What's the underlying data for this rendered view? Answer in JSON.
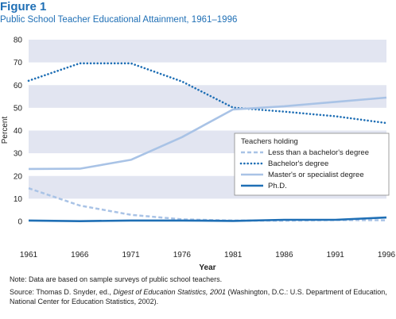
{
  "figure": {
    "label": "Figure 1",
    "subtitle": "Public School Teacher Educational Attainment, 1961–1996"
  },
  "chart_data": {
    "type": "line",
    "title": "Public School Teacher Educational Attainment, 1961–1996",
    "xlabel": "Year",
    "ylabel": "Percent",
    "x": [
      1961,
      1966,
      1971,
      1976,
      1981,
      1986,
      1991,
      1996
    ],
    "xticks": [
      "1961",
      "1966",
      "1971",
      "1976",
      "1981",
      "1986",
      "1991",
      "1996"
    ],
    "yticks": [
      "0",
      "10",
      "20",
      "30",
      "40",
      "50",
      "60",
      "70",
      "80"
    ],
    "ylim": [
      0,
      80
    ],
    "grid": "alternating horizontal bands",
    "legend_title": "Teachers holding",
    "legend_position": "right, middle",
    "series": [
      {
        "name": "Less than a bachelor's degree",
        "style": "dashed",
        "color": "#a9c3e6",
        "values": [
          14.6,
          7.0,
          2.9,
          0.9,
          0.4,
          0.3,
          0.6,
          0.5
        ]
      },
      {
        "name": "Bachelor's degree",
        "style": "dotted",
        "color": "#1f6fb5",
        "values": [
          61.9,
          69.6,
          69.6,
          61.6,
          50.1,
          48.3,
          46.3,
          43.3
        ]
      },
      {
        "name": "Master's or specialist degree",
        "style": "solid",
        "color": "#a9c3e6",
        "values": [
          23.1,
          23.2,
          27.1,
          37.1,
          49.3,
          50.7,
          52.6,
          54.5
        ]
      },
      {
        "name": "Ph.D.",
        "style": "solid",
        "color": "#1f6fb5",
        "values": [
          0.4,
          0.1,
          0.4,
          0.4,
          0.2,
          0.7,
          0.7,
          1.7
        ]
      }
    ]
  },
  "notes": {
    "note": "Note: Data are based on sample surveys of public school teachers.",
    "source_prefix": "Source: Thomas D. Snyder, ed., ",
    "source_italic": "Digest of Education Statistics, 2001",
    "source_suffix": " (Washington, D.C.: U.S. Department of Education, National Center for Education Statistics, 2002)."
  },
  "colors": {
    "title": "#1f6fb5",
    "band": "#e2e5f1",
    "dark_blue": "#1f6fb5",
    "light_blue": "#a9c3e6"
  }
}
